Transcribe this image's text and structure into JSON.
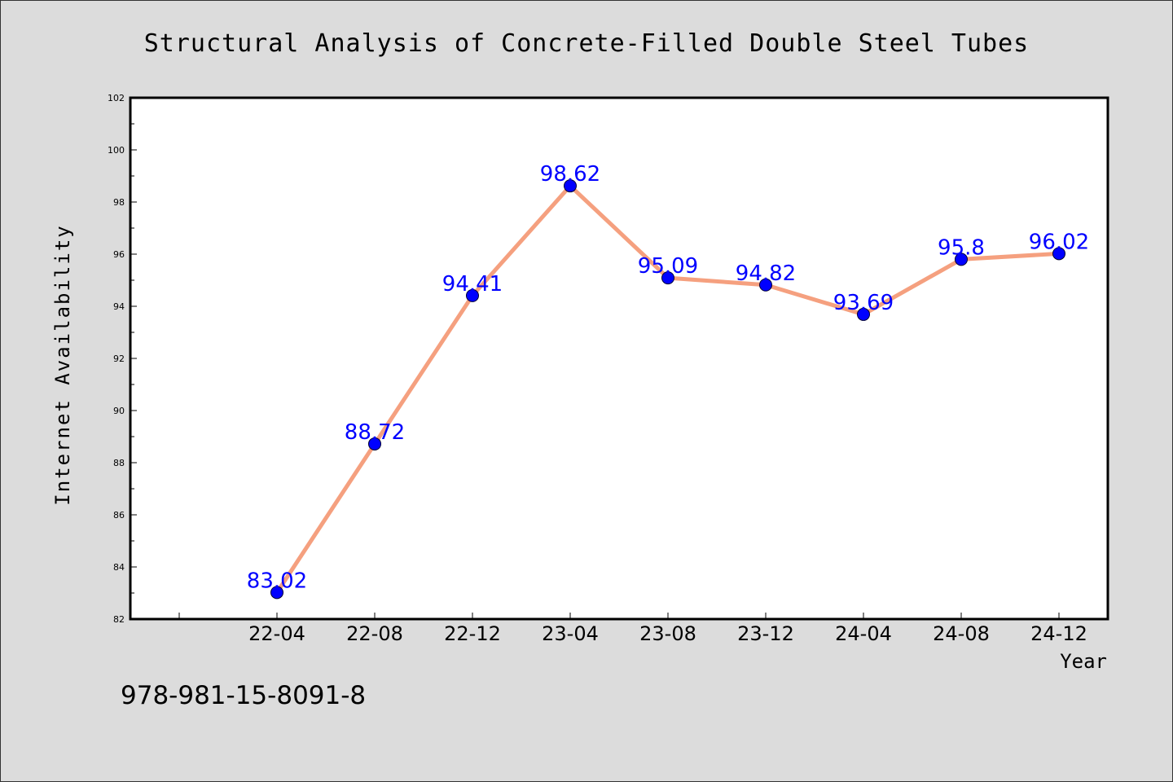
{
  "chart_data": {
    "type": "line",
    "title": "Structural Analysis of Concrete-Filled Double Steel Tubes",
    "xlabel": "Year",
    "ylabel": "Internet Availability",
    "categories": [
      "22-04",
      "22-08",
      "22-12",
      "23-04",
      "23-08",
      "23-12",
      "24-04",
      "24-08",
      "24-12"
    ],
    "series": [
      {
        "values": [
          83.02,
          88.72,
          94.41,
          98.62,
          95.09,
          94.82,
          93.69,
          95.8,
          96.02
        ]
      }
    ],
    "data_labels": [
      "83.02",
      "88.72",
      "94.41",
      "98.62",
      "95.09",
      "94.82",
      "93.69",
      "95.8",
      "96.02"
    ],
    "ylim": [
      82,
      102
    ],
    "yticks": [
      82,
      84,
      86,
      88,
      90,
      92,
      94,
      96,
      98,
      100,
      102
    ],
    "grid": false,
    "line_color": "#f5a07f",
    "marker_color": "#0000ff",
    "label_color": "#0000ff",
    "plot_background": "#ffffff",
    "figure_background": "#dcdcdc"
  },
  "footer": {
    "isbn": "978-981-15-8091-8"
  }
}
